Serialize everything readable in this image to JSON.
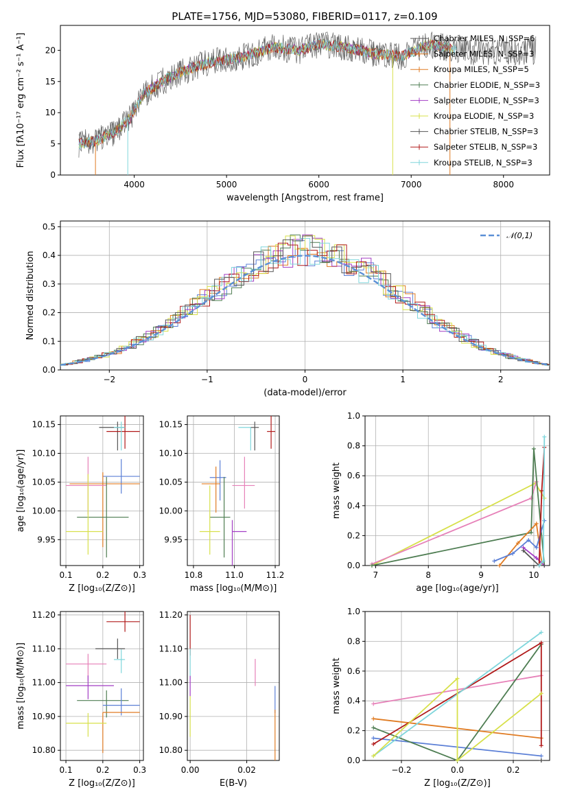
{
  "title": "PLATE=1756, MJD=53080, FIBERID=0117, z=0.109",
  "colors": {
    "chabrier_miles": "#5b7fd6",
    "salpeter_miles": "#e07b22",
    "kroupa_miles": "#e07b22",
    "chabrier_elodie": "#4e7d52",
    "salpeter_elodie": "#a23cc4",
    "kroupa_elodie": "#d7e04a",
    "chabrier_stelib": "#555555",
    "salpeter_stelib": "#b01818",
    "kroupa_stelib": "#7fd6dc",
    "pink": "#e680b8",
    "normal": "#5b8fd6"
  },
  "chart_data": [
    {
      "id": "spectrum",
      "type": "line",
      "title": "PLATE=1756, MJD=53080, FIBERID=0117, z=0.109",
      "xlabel": "wavelength [Angstrom, rest frame]",
      "ylabel": "Flux [fλ10⁻¹⁷ erg cm⁻² s⁻¹ A⁻¹]",
      "xlim": [
        3200,
        8500
      ],
      "ylim": [
        0,
        24
      ],
      "xticks": [
        4000,
        5000,
        6000,
        7000,
        8000
      ],
      "yticks": [
        0,
        5,
        10,
        15,
        20
      ],
      "legend_position": "right",
      "continuum": {
        "x": [
          3400,
          3600,
          3800,
          3950,
          4100,
          4300,
          4500,
          4800,
          5000,
          5200,
          5500,
          5800,
          6000,
          6300,
          6600,
          6900,
          7200,
          7500
        ],
        "y": [
          5,
          5.5,
          7,
          9,
          13,
          15,
          16.5,
          18,
          18.5,
          19,
          20.5,
          20,
          21,
          20.5,
          19.5,
          19,
          21,
          20
        ]
      },
      "series": [
        {
          "name": "Chabrier MILES, N_SSP=6",
          "color": "#555555"
        },
        {
          "name": "Salpeter MILES, N_SSP=3",
          "color": "#e07b22"
        },
        {
          "name": "Kroupa MILES, N_SSP=5",
          "color": "#e07b22"
        },
        {
          "name": "Chabrier ELODIE, N_SSP=3",
          "color": "#4e7d52"
        },
        {
          "name": "Salpeter ELODIE, N_SSP=3",
          "color": "#a23cc4"
        },
        {
          "name": "Kroupa ELODIE, N_SSP=3",
          "color": "#d7e04a"
        },
        {
          "name": "Chabrier STELIB, N_SSP=3",
          "color": "#555555"
        },
        {
          "name": "Salpeter STELIB, N_SSP=3",
          "color": "#b01818"
        },
        {
          "name": "Kroupa STELIB, N_SSP=3",
          "color": "#7fd6dc"
        }
      ]
    },
    {
      "id": "residuals",
      "type": "line",
      "xlabel": "(data-model)/error",
      "ylabel": "Normed distribution",
      "xlim": [
        -2.5,
        2.5
      ],
      "ylim": [
        0,
        0.52
      ],
      "xticks": [
        -2,
        -1,
        0,
        1,
        2
      ],
      "yticks": [
        0.0,
        0.1,
        0.2,
        0.3,
        0.4,
        0.5
      ],
      "grid": true,
      "legend": "𝒩(0,1)",
      "legend_position": "top-right",
      "normal_mean": 0,
      "normal_sigma": 1,
      "histogram_colors": [
        "#5b7fd6",
        "#e07b22",
        "#4e7d52",
        "#a23cc4",
        "#d7e04a",
        "#b01818",
        "#7fd6dc",
        "#555555"
      ]
    },
    {
      "id": "age_vs_Z",
      "type": "scatter",
      "xlabel": "Z [log₁₀(Z/Z⊙)]",
      "ylabel": "age  [log₁₀(age/yr)]",
      "xlim": [
        0.085,
        0.31
      ],
      "ylim": [
        9.905,
        10.165
      ],
      "xticks": [
        0.1,
        0.2,
        0.3
      ],
      "yticks": [
        9.95,
        10.0,
        10.05,
        10.1,
        10.15
      ],
      "points": [
        {
          "x": 0.24,
          "y": 10.145,
          "xerr": [
            0.05,
            0.02
          ],
          "yerr": [
            0.04,
            0.01
          ],
          "color": "#555555"
        },
        {
          "x": 0.26,
          "y": 10.138,
          "xerr": [
            0.05,
            0.04
          ],
          "yerr": [
            0.03,
            0.03
          ],
          "color": "#b01818"
        },
        {
          "x": 0.25,
          "y": 10.06,
          "xerr": [
            0.05,
            0.05
          ],
          "yerr": [
            0.03,
            0.03
          ],
          "color": "#5b7fd6"
        },
        {
          "x": 0.2,
          "y": 10.047,
          "xerr": [
            0.09,
            0.1
          ],
          "yerr": [
            0.11,
            0.02
          ],
          "color": "#e07b22"
        },
        {
          "x": 0.16,
          "y": 10.044,
          "xerr": [
            0.06,
            0.05
          ],
          "yerr": [
            0.05,
            0.05
          ],
          "color": "#e680b8"
        },
        {
          "x": 0.21,
          "y": 9.989,
          "xerr": [
            0.08,
            0.06
          ],
          "yerr": [
            0.07,
            0.07
          ],
          "color": "#4e7d52"
        },
        {
          "x": 0.16,
          "y": 9.964,
          "xerr": [
            0.06,
            0.04
          ],
          "yerr": [
            0.04,
            0.1
          ],
          "color": "#d7e04a"
        },
        {
          "x": 0.25,
          "y": 10.145,
          "xerr": [
            0.02,
            0.01
          ],
          "yerr": [
            0.04,
            0.01
          ],
          "color": "#7fd6dc"
        }
      ]
    },
    {
      "id": "age_vs_mass",
      "type": "scatter",
      "xlabel": "mass [log₁₀(M/M⊙)]",
      "ylabel": "",
      "xlim": [
        10.77,
        11.22
      ],
      "ylim": [
        9.905,
        10.165
      ],
      "xticks": [
        10.8,
        11.0,
        11.2
      ],
      "yticks": [
        9.95,
        10.0,
        10.05,
        10.1,
        10.15
      ],
      "points": [
        {
          "x": 11.1,
          "y": 10.145,
          "xerr": [
            0.02,
            0.02
          ],
          "yerr": [
            0.04,
            0.01
          ],
          "color": "#555555"
        },
        {
          "x": 11.18,
          "y": 10.138,
          "xerr": [
            0.02,
            0.02
          ],
          "yerr": [
            0.03,
            0.03
          ],
          "color": "#b01818"
        },
        {
          "x": 10.93,
          "y": 10.058,
          "xerr": [
            0.05,
            0.03
          ],
          "yerr": [
            0.04,
            0.03
          ],
          "color": "#5b7fd6"
        },
        {
          "x": 10.91,
          "y": 10.047,
          "xerr": [
            0.07,
            0.02
          ],
          "yerr": [
            0.05,
            0.03
          ],
          "color": "#e07b22"
        },
        {
          "x": 11.05,
          "y": 10.044,
          "xerr": [
            0.06,
            0.05
          ],
          "yerr": [
            0.04,
            0.05
          ],
          "color": "#e680b8"
        },
        {
          "x": 10.95,
          "y": 9.989,
          "xerr": [
            0.07,
            0.03
          ],
          "yerr": [
            0.07,
            0.07
          ],
          "color": "#4e7d52"
        },
        {
          "x": 10.99,
          "y": 9.964,
          "xerr": [
            0.0,
            0.07
          ],
          "yerr": [
            0.06,
            0.02
          ],
          "color": "#a23cc4"
        },
        {
          "x": 10.88,
          "y": 9.964,
          "xerr": [
            0.05,
            0.05
          ],
          "yerr": [
            0.04,
            0.08
          ],
          "color": "#d7e04a"
        },
        {
          "x": 11.08,
          "y": 10.145,
          "xerr": [
            0.06,
            0.0
          ],
          "yerr": [
            0.04,
            0.0
          ],
          "color": "#7fd6dc"
        }
      ]
    },
    {
      "id": "weight_vs_age",
      "type": "line",
      "xlabel": "age  [log₁₀(age/yr)]",
      "ylabel": "mass weight",
      "xlim": [
        6.8,
        10.3
      ],
      "ylim": [
        0,
        1.0
      ],
      "xticks": [
        7,
        8,
        9,
        10
      ],
      "yticks": [
        0.0,
        0.2,
        0.4,
        0.6,
        0.8,
        1.0
      ],
      "grid": true,
      "series": [
        {
          "color": "#d7e04a",
          "x": [
            6.93,
            10.03,
            10.2
          ],
          "y": [
            0.0,
            0.55,
            0.45
          ]
        },
        {
          "color": "#e680b8",
          "x": [
            6.93,
            9.95,
            10.05
          ],
          "y": [
            0.01,
            0.45,
            0.56
          ]
        },
        {
          "color": "#4e7d52",
          "x": [
            6.93,
            9.95,
            10.0,
            10.2
          ],
          "y": [
            0.0,
            0.22,
            0.78,
            0.0
          ]
        },
        {
          "color": "#e07b22",
          "x": [
            9.35,
            9.7,
            10.05,
            10.15
          ],
          "y": [
            0.0,
            0.15,
            0.28,
            0.02
          ]
        },
        {
          "color": "#5b7fd6",
          "x": [
            9.25,
            9.6,
            9.9,
            10.05,
            10.2
          ],
          "y": [
            0.03,
            0.08,
            0.17,
            0.12,
            0.3
          ]
        },
        {
          "color": "#a23cc4",
          "x": [
            9.8,
            10.05,
            10.2
          ],
          "y": [
            0.12,
            0.05,
            0.0
          ]
        },
        {
          "color": "#555555",
          "x": [
            9.8,
            10.1,
            10.2
          ],
          "y": [
            0.1,
            0.0,
            0.0
          ]
        },
        {
          "color": "#b01818",
          "x": [
            10.1,
            10.15,
            10.2
          ],
          "y": [
            0.0,
            0.5,
            0.79
          ]
        },
        {
          "color": "#7fd6dc",
          "x": [
            10.1,
            10.18,
            10.2
          ],
          "y": [
            0.0,
            0.03,
            0.86
          ]
        }
      ]
    },
    {
      "id": "mass_vs_Z",
      "type": "scatter",
      "xlabel": "Z [log₁₀(Z/Z⊙)]",
      "ylabel": "mass [log₁₀(M/M⊙)]",
      "xlim": [
        0.085,
        0.31
      ],
      "ylim": [
        10.77,
        11.21
      ],
      "xticks": [
        0.1,
        0.2,
        0.3
      ],
      "yticks": [
        10.8,
        10.9,
        11.0,
        11.1,
        11.2
      ],
      "points": [
        {
          "x": 0.26,
          "y": 11.18,
          "xerr": [
            0.05,
            0.04
          ],
          "yerr": [
            0.03,
            0.03
          ],
          "color": "#b01818"
        },
        {
          "x": 0.24,
          "y": 11.1,
          "xerr": [
            0.06,
            0.02
          ],
          "yerr": [
            0.03,
            0.03
          ],
          "color": "#555555"
        },
        {
          "x": 0.25,
          "y": 11.068,
          "xerr": [
            0.02,
            0.01
          ],
          "yerr": [
            0.04,
            0.03
          ],
          "color": "#7fd6dc"
        },
        {
          "x": 0.16,
          "y": 11.055,
          "xerr": [
            0.06,
            0.05
          ],
          "yerr": [
            0.05,
            0.03
          ],
          "color": "#e680b8"
        },
        {
          "x": 0.16,
          "y": 10.991,
          "xerr": [
            0.06,
            0.07
          ],
          "yerr": [
            0.04,
            0.03
          ],
          "color": "#a23cc4"
        },
        {
          "x": 0.21,
          "y": 10.947,
          "xerr": [
            0.08,
            0.06
          ],
          "yerr": [
            0.05,
            0.03
          ],
          "color": "#4e7d52"
        },
        {
          "x": 0.25,
          "y": 10.933,
          "xerr": [
            0.05,
            0.05
          ],
          "yerr": [
            0.03,
            0.05
          ],
          "color": "#5b7fd6"
        },
        {
          "x": 0.2,
          "y": 10.912,
          "xerr": [
            0.0,
            0.1
          ],
          "yerr": [
            0.12,
            0.0
          ],
          "color": "#e07b22"
        },
        {
          "x": 0.16,
          "y": 10.88,
          "xerr": [
            0.06,
            0.05
          ],
          "yerr": [
            0.04,
            0.03
          ],
          "color": "#d7e04a"
        }
      ]
    },
    {
      "id": "mass_vs_EBV",
      "type": "scatter",
      "xlabel": "E(B-V)",
      "ylabel": "",
      "xlim": [
        -0.001,
        0.0315
      ],
      "ylim": [
        10.77,
        11.21
      ],
      "xticks": [
        0.0,
        0.02
      ],
      "yticks": [
        10.8,
        10.9,
        11.0,
        11.1,
        11.2
      ],
      "points": [
        {
          "x": 0.0,
          "y": 11.14,
          "xerr": [
            0,
            0
          ],
          "yerr": [
            0.06,
            0.06
          ],
          "color": "#b01818"
        },
        {
          "x": 0.0,
          "y": 11.07,
          "xerr": [
            0,
            0
          ],
          "yerr": [
            0.06,
            0.03
          ],
          "color": "#7fd6dc"
        },
        {
          "x": 0.0,
          "y": 10.99,
          "xerr": [
            0,
            0
          ],
          "yerr": [
            0.03,
            0.03
          ],
          "color": "#a23cc4"
        },
        {
          "x": 0.0,
          "y": 10.9,
          "xerr": [
            0,
            0
          ],
          "yerr": [
            0.06,
            0.06
          ],
          "color": "#d7e04a"
        },
        {
          "x": 0.023,
          "y": 11.03,
          "xerr": [
            0,
            0
          ],
          "yerr": [
            0.04,
            0.04
          ],
          "color": "#e680b8"
        },
        {
          "x": 0.03,
          "y": 10.95,
          "xerr": [
            0,
            0
          ],
          "yerr": [
            0.04,
            0.04
          ],
          "color": "#5b7fd6"
        },
        {
          "x": 0.03,
          "y": 10.86,
          "xerr": [
            0,
            0
          ],
          "yerr": [
            0.09,
            0.06
          ],
          "color": "#e07b22"
        }
      ]
    },
    {
      "id": "weight_vs_Z",
      "type": "line",
      "xlabel": "Z [log₁₀(Z/Z⊙)]",
      "ylabel": "mass weight",
      "xlim": [
        -0.33,
        0.33
      ],
      "ylim": [
        0,
        1.0
      ],
      "xticks": [
        -0.2,
        0.0,
        0.2
      ],
      "yticks": [
        0.0,
        0.2,
        0.4,
        0.6,
        0.8,
        1.0
      ],
      "grid": true,
      "series": [
        {
          "color": "#e680b8",
          "x": [
            -0.3,
            0.3
          ],
          "y": [
            0.38,
            0.57
          ]
        },
        {
          "color": "#e07b22",
          "x": [
            -0.3,
            0.3
          ],
          "y": [
            0.28,
            0.15
          ]
        },
        {
          "color": "#5b7fd6",
          "x": [
            -0.3,
            0.3
          ],
          "y": [
            0.15,
            0.03
          ]
        },
        {
          "color": "#4e7d52",
          "x": [
            -0.3,
            0.0,
            0.3
          ],
          "y": [
            0.22,
            0.0,
            0.78
          ]
        },
        {
          "color": "#b01818",
          "x": [
            -0.3,
            0.3,
            0.3
          ],
          "y": [
            0.11,
            0.79,
            0.1
          ]
        },
        {
          "color": "#7fd6dc",
          "x": [
            -0.3,
            0.3
          ],
          "y": [
            0.03,
            0.86
          ]
        },
        {
          "color": "#d7e04a",
          "x": [
            -0.3,
            0.0,
            0.0,
            0.3
          ],
          "y": [
            0.03,
            0.55,
            0.0,
            0.45
          ]
        },
        {
          "color": "#555555",
          "x": [
            0.3,
            0.3
          ],
          "y": [
            0.0,
            0.0
          ]
        }
      ]
    }
  ]
}
